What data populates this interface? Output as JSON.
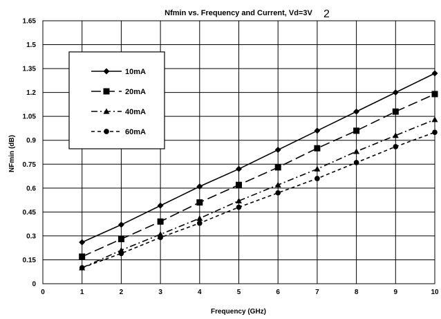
{
  "page_mark": "2",
  "chart_data": {
    "type": "line",
    "title": "Nfmin vs. Frequency and Current, Vd=3V",
    "xlabel": "Frequency (GHz)",
    "ylabel": "NFmin (dB)",
    "xlim": [
      0,
      10
    ],
    "ylim": [
      0,
      1.65
    ],
    "x_ticks": [
      "0",
      "1",
      "2",
      "3",
      "4",
      "5",
      "6",
      "7",
      "8",
      "9",
      "10"
    ],
    "y_ticks": [
      "0",
      "0.15",
      "0.3",
      "0.45",
      "0.6",
      "0.75",
      "0.9",
      "1.05",
      "1.2",
      "1.35",
      "1.5",
      "1.65"
    ],
    "grid": true,
    "legend_position": "top-left",
    "x": [
      1,
      2,
      3,
      4,
      5,
      6,
      7,
      8,
      9,
      10
    ],
    "series": [
      {
        "name": "10mA",
        "marker": "diamond",
        "dash": "solid",
        "values": [
          0.26,
          0.37,
          0.49,
          0.61,
          0.72,
          0.84,
          0.96,
          1.08,
          1.2,
          1.32
        ]
      },
      {
        "name": "20mA",
        "marker": "square",
        "dash": "long-dash",
        "values": [
          0.17,
          0.28,
          0.39,
          0.51,
          0.62,
          0.73,
          0.85,
          0.96,
          1.08,
          1.19
        ]
      },
      {
        "name": "40mA",
        "marker": "triangle",
        "dash": "dash-dot",
        "values": [
          0.1,
          0.21,
          0.31,
          0.41,
          0.52,
          0.62,
          0.72,
          0.83,
          0.93,
          1.03
        ]
      },
      {
        "name": "60mA",
        "marker": "circle",
        "dash": "short-dash",
        "values": [
          0.1,
          0.19,
          0.29,
          0.38,
          0.48,
          0.57,
          0.66,
          0.76,
          0.86,
          0.95
        ]
      }
    ]
  }
}
